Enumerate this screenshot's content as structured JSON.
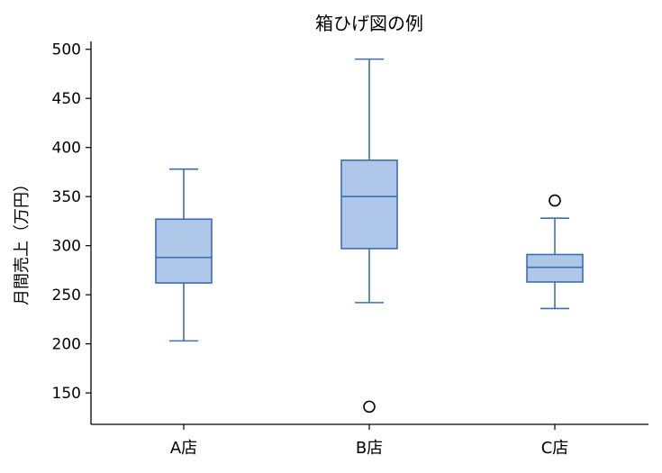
{
  "chart_data": {
    "type": "box",
    "title": "箱ひげ図の例",
    "xlabel": "",
    "ylabel": "月間売上（万円）",
    "categories": [
      "A店",
      "B店",
      "C店"
    ],
    "ylim": [
      118,
      508
    ],
    "yticks": [
      150,
      200,
      250,
      300,
      350,
      400,
      450,
      500
    ],
    "grid": false,
    "colors": {
      "box_fill": "#aec7e8",
      "box_edge": "#3a6fb0",
      "outlier_edge": "#000000"
    },
    "boxes": [
      {
        "category": "A店",
        "whisker_low": 203,
        "q1": 262,
        "median": 288,
        "q3": 327,
        "whisker_high": 378,
        "outliers": []
      },
      {
        "category": "B店",
        "whisker_low": 242,
        "q1": 297,
        "median": 350,
        "q3": 387,
        "whisker_high": 490,
        "outliers": [
          136
        ]
      },
      {
        "category": "C店",
        "whisker_low": 236,
        "q1": 263,
        "median": 278,
        "q3": 291,
        "whisker_high": 328,
        "outliers": [
          346
        ]
      }
    ]
  }
}
